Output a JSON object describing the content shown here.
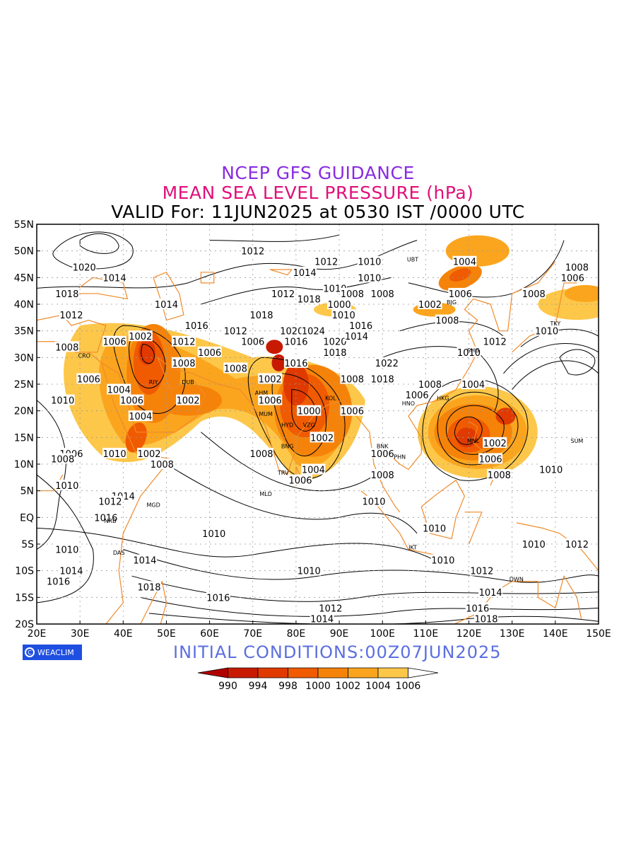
{
  "header": {
    "line1": "NCEP GFS GUIDANCE",
    "line2": "MEAN SEA LEVEL PRESSURE (hPa)",
    "line3": "VALID For: 11JUN2025 at 0530 IST /0000 UTC"
  },
  "footer": {
    "brand": "WEACLIM",
    "initial": "INITIAL CONDITIONS:00Z07JUN2025"
  },
  "colors": {
    "frame": "#000000",
    "coast": "#f08a2a",
    "contour": "#000000",
    "grid": "#9a9a9a"
  },
  "axes": {
    "lon_labels": [
      "20E",
      "30E",
      "40E",
      "50E",
      "60E",
      "70E",
      "80E",
      "90E",
      "100E",
      "110E",
      "120E",
      "130E",
      "140E",
      "150E"
    ],
    "lat_labels": [
      "55N",
      "50N",
      "45N",
      "40N",
      "35N",
      "30N",
      "25N",
      "20N",
      "15N",
      "10N",
      "5N",
      "EQ",
      "5S",
      "10S",
      "15S",
      "20S"
    ],
    "lon_range": [
      20,
      150
    ],
    "lat_range": [
      -20,
      55
    ]
  },
  "legend": {
    "boundaries": [
      "990",
      "994",
      "998",
      "1000",
      "1002",
      "1004",
      "1006"
    ],
    "colors": [
      "#b00000",
      "#c81a00",
      "#e03a00",
      "#f05a00",
      "#f5830a",
      "#fba51e",
      "#fdc74a",
      "#ffffff"
    ]
  },
  "pressure_areas": [
    {
      "name": "arabian-low",
      "lon": 46,
      "lat": 31,
      "level": 998
    },
    {
      "name": "pakistan-india-low",
      "lon": 82,
      "lat": 20,
      "level": 1000
    },
    {
      "name": "philippines-low",
      "lon": 120,
      "lat": 16,
      "level": 1000
    },
    {
      "name": "east-asia-low",
      "lon": 118,
      "lat": 46,
      "level": 1002
    },
    {
      "name": "sahara-low",
      "lon": 52,
      "lat": 22,
      "level": 1002
    }
  ],
  "contour_labels": [
    {
      "text": "1012",
      "lon": 70,
      "lat": 50
    },
    {
      "text": "1020",
      "lon": 31,
      "lat": 47
    },
    {
      "text": "1014",
      "lon": 38,
      "lat": 45
    },
    {
      "text": "1018",
      "lon": 27,
      "lat": 42
    },
    {
      "text": "1012",
      "lon": 28,
      "lat": 38
    },
    {
      "text": "1014",
      "lon": 50,
      "lat": 40
    },
    {
      "text": "1016",
      "lon": 57,
      "lat": 36
    },
    {
      "text": "1006",
      "lon": 38,
      "lat": 33
    },
    {
      "text": "1008",
      "lon": 27,
      "lat": 32
    },
    {
      "text": "1002",
      "lon": 44,
      "lat": 34
    },
    {
      "text": "1012",
      "lon": 54,
      "lat": 33
    },
    {
      "text": "1006",
      "lon": 60,
      "lat": 31
    },
    {
      "text": "1008",
      "lon": 54,
      "lat": 29
    },
    {
      "text": "1008",
      "lon": 66,
      "lat": 28
    },
    {
      "text": "1002",
      "lon": 74,
      "lat": 26
    },
    {
      "text": "1006",
      "lon": 32,
      "lat": 26
    },
    {
      "text": "1004",
      "lon": 39,
      "lat": 24
    },
    {
      "text": "1010",
      "lon": 26,
      "lat": 22
    },
    {
      "text": "1006",
      "lon": 42,
      "lat": 22
    },
    {
      "text": "1004",
      "lon": 44,
      "lat": 19
    },
    {
      "text": "1002",
      "lon": 55,
      "lat": 22
    },
    {
      "text": "1006",
      "lon": 74,
      "lat": 22
    },
    {
      "text": "1000",
      "lon": 83,
      "lat": 20
    },
    {
      "text": "1002",
      "lon": 86,
      "lat": 15
    },
    {
      "text": "1006",
      "lon": 93,
      "lat": 20
    },
    {
      "text": "1006",
      "lon": 28,
      "lat": 12
    },
    {
      "text": "1010",
      "lon": 38,
      "lat": 12
    },
    {
      "text": "1002",
      "lon": 46,
      "lat": 12
    },
    {
      "text": "1008",
      "lon": 49,
      "lat": 10
    },
    {
      "text": "1008",
      "lon": 72,
      "lat": 12
    },
    {
      "text": "1004",
      "lon": 84,
      "lat": 9
    },
    {
      "text": "1006",
      "lon": 81,
      "lat": 7
    },
    {
      "text": "1006",
      "lon": 100,
      "lat": 12
    },
    {
      "text": "1008",
      "lon": 100,
      "lat": 8
    },
    {
      "text": "1010",
      "lon": 98,
      "lat": 3
    },
    {
      "text": "1008",
      "lon": 26,
      "lat": 11
    },
    {
      "text": "1010",
      "lon": 27,
      "lat": 6
    },
    {
      "text": "1014",
      "lon": 40,
      "lat": 4
    },
    {
      "text": "1012",
      "lon": 37,
      "lat": 3
    },
    {
      "text": "1016",
      "lon": 36,
      "lat": 0
    },
    {
      "text": "1010",
      "lon": 61,
      "lat": -3
    },
    {
      "text": "1010",
      "lon": 27,
      "lat": -6
    },
    {
      "text": "1014",
      "lon": 28,
      "lat": -10
    },
    {
      "text": "1016",
      "lon": 25,
      "lat": -12
    },
    {
      "text": "1014",
      "lon": 45,
      "lat": -8
    },
    {
      "text": "1018",
      "lon": 46,
      "lat": -13
    },
    {
      "text": "1016",
      "lon": 62,
      "lat": -15
    },
    {
      "text": "1010",
      "lon": 83,
      "lat": -10
    },
    {
      "text": "1012",
      "lon": 88,
      "lat": -17
    },
    {
      "text": "1014",
      "lon": 86,
      "lat": -19
    },
    {
      "text": "1010",
      "lon": 112,
      "lat": -2
    },
    {
      "text": "1010",
      "lon": 114,
      "lat": -8
    },
    {
      "text": "1012",
      "lon": 123,
      "lat": -10
    },
    {
      "text": "1014",
      "lon": 125,
      "lat": -14
    },
    {
      "text": "1016",
      "lon": 122,
      "lat": -17
    },
    {
      "text": "1018",
      "lon": 124,
      "lat": -19
    },
    {
      "text": "1010",
      "lon": 135,
      "lat": -5
    },
    {
      "text": "1012",
      "lon": 145,
      "lat": -5
    },
    {
      "text": "1010",
      "lon": 139,
      "lat": 9
    },
    {
      "text": "1008",
      "lon": 127,
      "lat": 8
    },
    {
      "text": "1006",
      "lon": 125,
      "lat": 11
    },
    {
      "text": "1002",
      "lon": 126,
      "lat": 14
    },
    {
      "text": "1004",
      "lon": 121,
      "lat": 25
    },
    {
      "text": "1008",
      "lon": 111,
      "lat": 25
    },
    {
      "text": "1006",
      "lon": 108,
      "lat": 23
    },
    {
      "text": "1010",
      "lon": 120,
      "lat": 31
    },
    {
      "text": "1012",
      "lon": 126,
      "lat": 33
    },
    {
      "text": "1010",
      "lon": 138,
      "lat": 35
    },
    {
      "text": "1008",
      "lon": 115,
      "lat": 37
    },
    {
      "text": "1002",
      "lon": 111,
      "lat": 40
    },
    {
      "text": "1006",
      "lon": 118,
      "lat": 42
    },
    {
      "text": "1004",
      "lon": 119,
      "lat": 48
    },
    {
      "text": "1008",
      "lon": 135,
      "lat": 42
    },
    {
      "text": "1006",
      "lon": 144,
      "lat": 45
    },
    {
      "text": "1008",
      "lon": 145,
      "lat": 47
    },
    {
      "text": "1014",
      "lon": 82,
      "lat": 46
    },
    {
      "text": "1012",
      "lon": 87,
      "lat": 48
    },
    {
      "text": "1010",
      "lon": 97,
      "lat": 48
    },
    {
      "text": "1010",
      "lon": 97,
      "lat": 45
    },
    {
      "text": "1012",
      "lon": 77,
      "lat": 42
    },
    {
      "text": "1018",
      "lon": 83,
      "lat": 41
    },
    {
      "text": "1010",
      "lon": 89,
      "lat": 43
    },
    {
      "text": "1008",
      "lon": 93,
      "lat": 42
    },
    {
      "text": "1008",
      "lon": 100,
      "lat": 42
    },
    {
      "text": "1000",
      "lon": 90,
      "lat": 40
    },
    {
      "text": "1010",
      "lon": 91,
      "lat": 38
    },
    {
      "text": "1018",
      "lon": 72,
      "lat": 38
    },
    {
      "text": "1020",
      "lon": 79,
      "lat": 35
    },
    {
      "text": "1024",
      "lon": 84,
      "lat": 35
    },
    {
      "text": "1016",
      "lon": 80,
      "lat": 33
    },
    {
      "text": "1020",
      "lon": 89,
      "lat": 33
    },
    {
      "text": "1018",
      "lon": 89,
      "lat": 31
    },
    {
      "text": "1014",
      "lon": 94,
      "lat": 34
    },
    {
      "text": "1016",
      "lon": 95,
      "lat": 36
    },
    {
      "text": "1022",
      "lon": 101,
      "lat": 29
    },
    {
      "text": "1018",
      "lon": 100,
      "lat": 26
    },
    {
      "text": "1008",
      "lon": 93,
      "lat": 26
    },
    {
      "text": "1012",
      "lon": 66,
      "lat": 35
    },
    {
      "text": "1006",
      "lon": 70,
      "lat": 33
    },
    {
      "text": "1016",
      "lon": 80,
      "lat": 29
    }
  ],
  "stations": [
    {
      "code": "MLD",
      "lon": 73,
      "lat": 4
    },
    {
      "code": "MGD",
      "lon": 47,
      "lat": 2
    },
    {
      "code": "NRB",
      "lon": 37,
      "lat": -1
    },
    {
      "code": "DAS",
      "lon": 39,
      "lat": -7
    },
    {
      "code": "KOL",
      "lon": 88,
      "lat": 22
    },
    {
      "code": "MUM",
      "lon": 73,
      "lat": 19
    },
    {
      "code": "HYD",
      "lon": 78,
      "lat": 17
    },
    {
      "code": "VZG",
      "lon": 83,
      "lat": 17
    },
    {
      "code": "BNG",
      "lon": 78,
      "lat": 13
    },
    {
      "code": "TRV",
      "lon": 77,
      "lat": 8
    },
    {
      "code": "BNK",
      "lon": 100,
      "lat": 13
    },
    {
      "code": "PHN",
      "lon": 104,
      "lat": 11
    },
    {
      "code": "HNO",
      "lon": 106,
      "lat": 21
    },
    {
      "code": "HKG",
      "lon": 114,
      "lat": 22
    },
    {
      "code": "MNL",
      "lon": 121,
      "lat": 14
    },
    {
      "code": "SHG",
      "lon": 121,
      "lat": 31
    },
    {
      "code": "BJG",
      "lon": 116,
      "lat": 40
    },
    {
      "code": "UBT",
      "lon": 107,
      "lat": 48
    },
    {
      "code": "TKY",
      "lon": 140,
      "lat": 36
    },
    {
      "code": "SUM",
      "lon": 145,
      "lat": 14
    },
    {
      "code": "JKT",
      "lon": 107,
      "lat": -6
    },
    {
      "code": "DWN",
      "lon": 131,
      "lat": -12
    },
    {
      "code": "AHM",
      "lon": 72,
      "lat": 23
    },
    {
      "code": "DUB",
      "lon": 55,
      "lat": 25
    },
    {
      "code": "RIY",
      "lon": 47,
      "lat": 25
    },
    {
      "code": "CRO",
      "lon": 31,
      "lat": 30
    }
  ]
}
